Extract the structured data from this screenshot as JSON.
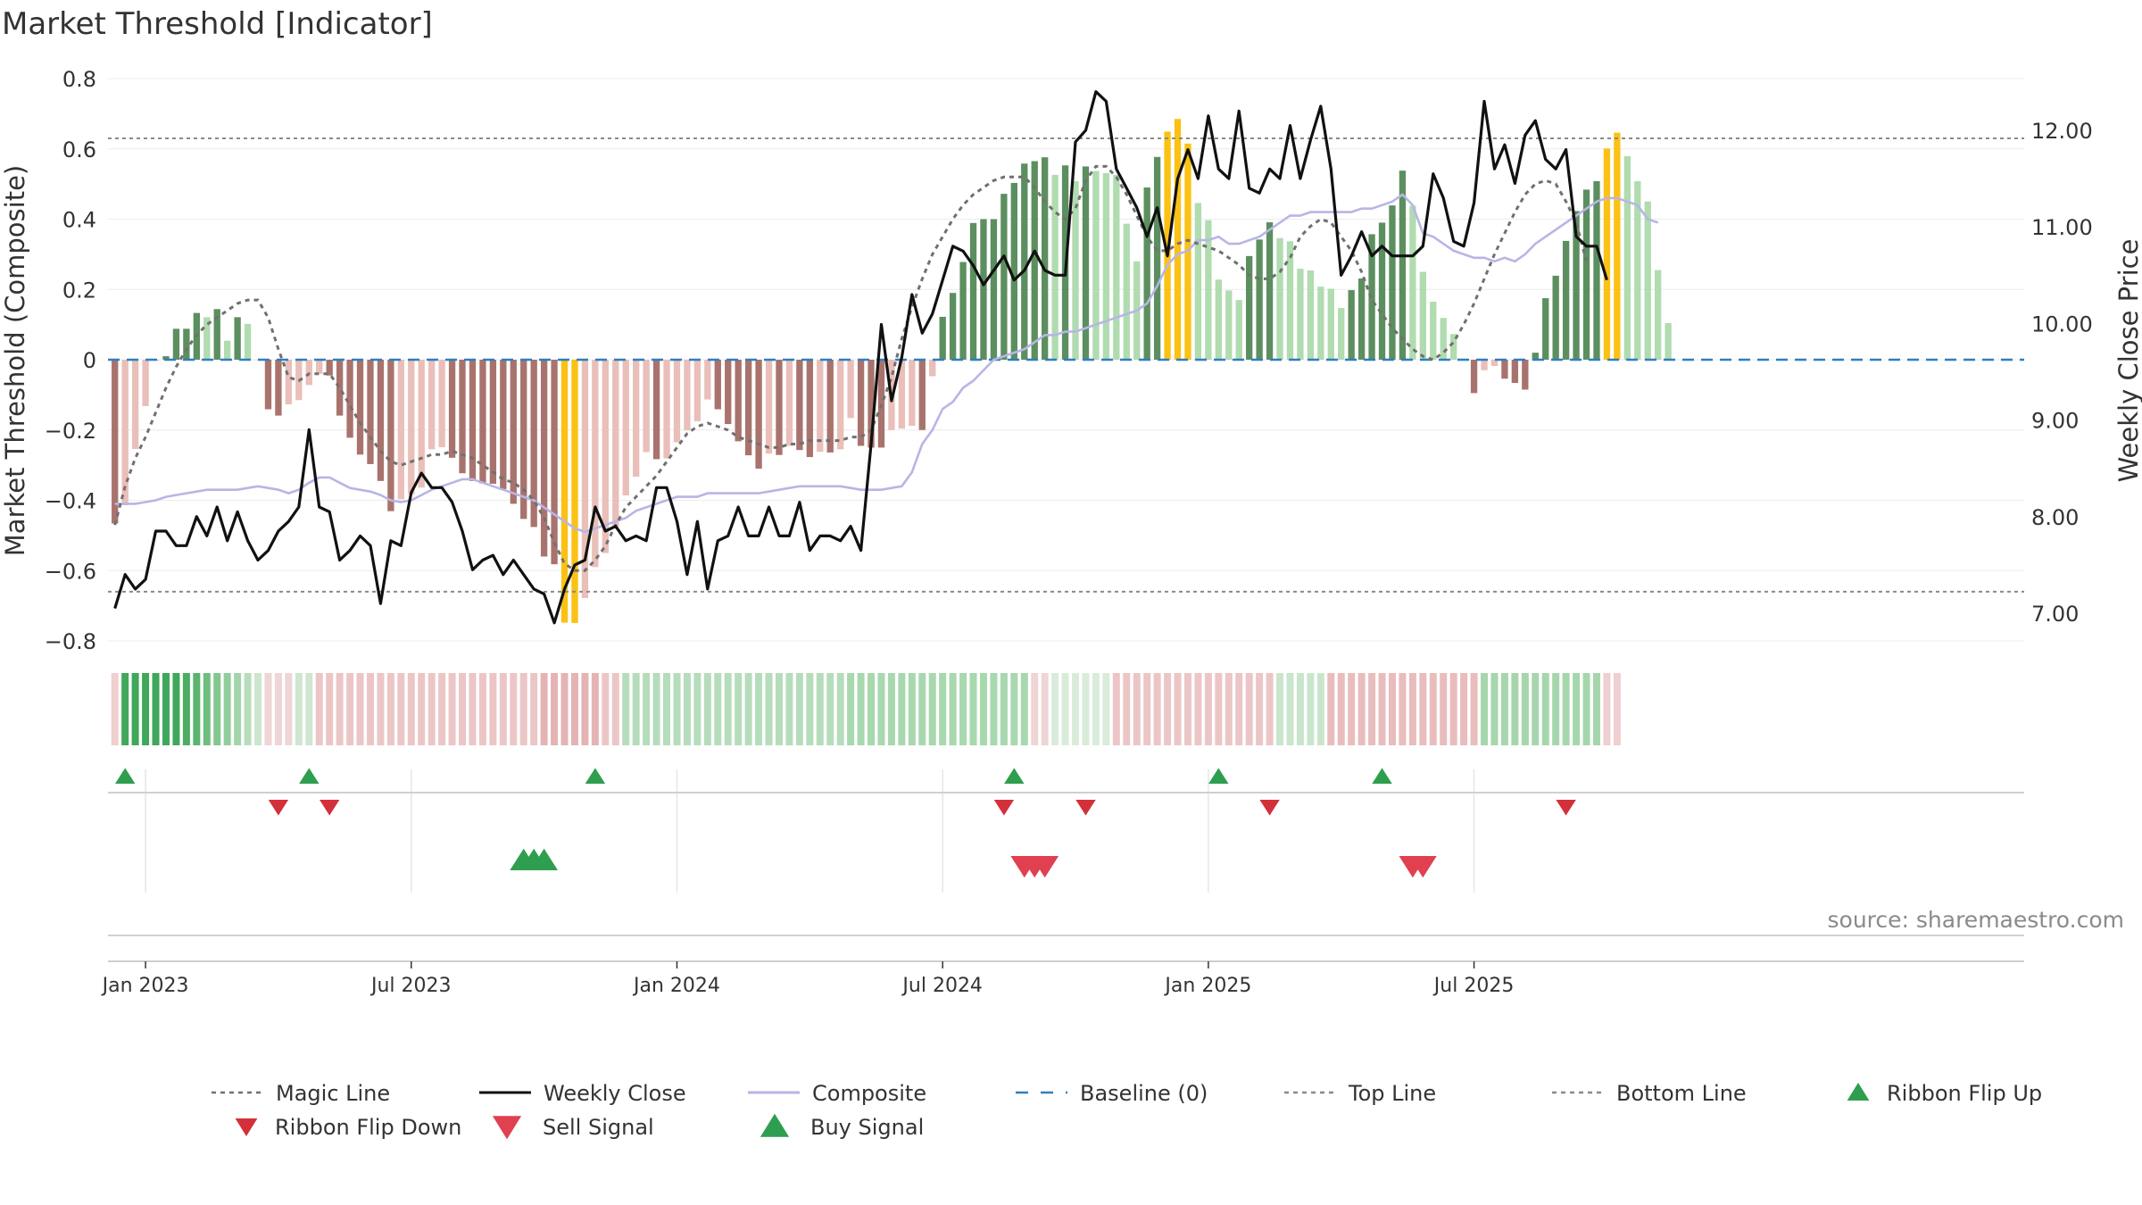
{
  "chart_data": {
    "type": "bar",
    "title": "Market Threshold [Indicator]",
    "ylabel": "Market Threshold (Composite)",
    "y2label": "Weekly Close Price",
    "source": "source: sharemaestro.com",
    "ylim": [
      -0.8,
      0.8
    ],
    "y2lim": [
      6.7,
      12.8
    ],
    "y_ticks": [
      0.8,
      0.6,
      0.4,
      0.2,
      0,
      -0.2,
      -0.4,
      -0.6,
      -0.8
    ],
    "y_tick_labels": [
      "0.8",
      "0.6",
      "0.4",
      "0.2",
      "0",
      "−0.2",
      "−0.4",
      "−0.6",
      "−0.8"
    ],
    "y2_ticks": [
      12,
      11,
      10,
      9,
      8,
      7
    ],
    "y2_tick_labels": [
      "12.00",
      "11.00",
      "10.00",
      "9.00",
      "8.00",
      "7.00"
    ],
    "x_ticks": [
      {
        "label": "Jan 2023",
        "week": 3
      },
      {
        "label": "Jul 2023",
        "week": 29
      },
      {
        "label": "Jan 2024",
        "week": 55
      },
      {
        "label": "Jul 2024",
        "week": 81
      },
      {
        "label": "Jan 2025",
        "week": 107
      },
      {
        "label": "Jul 2025",
        "week": 133
      }
    ],
    "top_line": 0.63,
    "bottom_line": -0.66,
    "composite": [
      -0.466,
      -0.414,
      -0.254,
      -0.132,
      0,
      0.01,
      0.088,
      0.088,
      0.133,
      0.121,
      0.144,
      0.054,
      0.121,
      0.102,
      0,
      -0.141,
      -0.159,
      -0.127,
      -0.115,
      -0.072,
      -0.04,
      -0.045,
      -0.159,
      -0.222,
      -0.27,
      -0.297,
      -0.345,
      -0.431,
      -0.397,
      -0.383,
      -0.364,
      -0.255,
      -0.249,
      -0.279,
      -0.323,
      -0.345,
      -0.352,
      -0.353,
      -0.368,
      -0.41,
      -0.453,
      -0.476,
      -0.56,
      -0.582,
      -0.748,
      -0.749,
      -0.678,
      -0.59,
      -0.55,
      -0.476,
      -0.386,
      -0.333,
      -0.263,
      -0.283,
      -0.281,
      -0.235,
      -0.201,
      -0.175,
      -0.113,
      -0.141,
      -0.183,
      -0.232,
      -0.272,
      -0.31,
      -0.267,
      -0.271,
      -0.245,
      -0.257,
      -0.277,
      -0.262,
      -0.264,
      -0.255,
      -0.166,
      -0.245,
      -0.25,
      -0.25,
      -0.2,
      -0.196,
      -0.188,
      -0.2,
      -0.047,
      0.122,
      0.19,
      0.278,
      0.389,
      0.4,
      0.4,
      0.472,
      0.503,
      0.558,
      0.565,
      0.576,
      0.526,
      0.553,
      0.508,
      0.55,
      0.537,
      0.531,
      0.526,
      0.387,
      0.28,
      0.49,
      0.577,
      0.649,
      0.685,
      0.615,
      0.446,
      0.397,
      0.228,
      0.197,
      0.17,
      0.295,
      0.342,
      0.391,
      0.346,
      0.337,
      0.259,
      0.254,
      0.208,
      0.202,
      0.147,
      0.198,
      0.231,
      0.357,
      0.39,
      0.439,
      0.538,
      0.438,
      0.25,
      0.165,
      0.119,
      0.073,
      0,
      -0.095,
      -0.03,
      -0.018,
      -0.054,
      -0.066,
      -0.085,
      0.02,
      0.175,
      0.239,
      0.338,
      0.423,
      0.484,
      0.508,
      0.601,
      0.646,
      0.579,
      0.508,
      0.45,
      0.255,
      0.104
    ],
    "magic_line": [
      -0.47,
      -0.36,
      -0.28,
      -0.22,
      -0.15,
      -0.08,
      -0.02,
      0.03,
      0.07,
      0.1,
      0.12,
      0.14,
      0.16,
      0.17,
      0.17,
      0.12,
      0.03,
      -0.05,
      -0.06,
      -0.04,
      -0.04,
      -0.04,
      -0.08,
      -0.13,
      -0.18,
      -0.22,
      -0.26,
      -0.29,
      -0.3,
      -0.29,
      -0.28,
      -0.27,
      -0.27,
      -0.26,
      -0.27,
      -0.28,
      -0.3,
      -0.32,
      -0.34,
      -0.35,
      -0.37,
      -0.4,
      -0.45,
      -0.52,
      -0.58,
      -0.6,
      -0.6,
      -0.57,
      -0.53,
      -0.47,
      -0.42,
      -0.39,
      -0.36,
      -0.33,
      -0.29,
      -0.25,
      -0.21,
      -0.19,
      -0.18,
      -0.19,
      -0.2,
      -0.22,
      -0.23,
      -0.24,
      -0.25,
      -0.25,
      -0.24,
      -0.24,
      -0.23,
      -0.23,
      -0.23,
      -0.23,
      -0.22,
      -0.22,
      -0.2,
      -0.13,
      -0.05,
      0.06,
      0.15,
      0.23,
      0.3,
      0.35,
      0.4,
      0.44,
      0.47,
      0.49,
      0.51,
      0.52,
      0.52,
      0.52,
      0.49,
      0.45,
      0.42,
      0.4,
      0.43,
      0.51,
      0.55,
      0.55,
      0.52,
      0.47,
      0.41,
      0.35,
      0.31,
      0.31,
      0.33,
      0.34,
      0.33,
      0.32,
      0.31,
      0.29,
      0.27,
      0.24,
      0.23,
      0.23,
      0.25,
      0.29,
      0.35,
      0.38,
      0.4,
      0.39,
      0.35,
      0.31,
      0.25,
      0.17,
      0.13,
      0.09,
      0.06,
      0.03,
      0.01,
      0,
      0.02,
      0.05,
      0.1,
      0.16,
      0.23,
      0.3,
      0.36,
      0.42,
      0.47,
      0.5,
      0.51,
      0.5,
      0.45,
      0.39,
      0.28
    ],
    "composite_smooth": [
      -0.41,
      -0.41,
      -0.41,
      -0.405,
      -0.4,
      -0.39,
      -0.385,
      -0.38,
      -0.375,
      -0.37,
      -0.37,
      -0.37,
      -0.37,
      -0.365,
      -0.36,
      -0.365,
      -0.37,
      -0.38,
      -0.37,
      -0.35,
      -0.335,
      -0.335,
      -0.35,
      -0.365,
      -0.37,
      -0.375,
      -0.385,
      -0.4,
      -0.405,
      -0.4,
      -0.385,
      -0.37,
      -0.36,
      -0.35,
      -0.34,
      -0.34,
      -0.35,
      -0.36,
      -0.37,
      -0.38,
      -0.39,
      -0.4,
      -0.42,
      -0.44,
      -0.46,
      -0.48,
      -0.49,
      -0.48,
      -0.47,
      -0.46,
      -0.45,
      -0.43,
      -0.42,
      -0.41,
      -0.4,
      -0.39,
      -0.39,
      -0.39,
      -0.38,
      -0.38,
      -0.38,
      -0.38,
      -0.38,
      -0.38,
      -0.375,
      -0.37,
      -0.365,
      -0.36,
      -0.36,
      -0.36,
      -0.36,
      -0.36,
      -0.365,
      -0.37,
      -0.37,
      -0.37,
      -0.365,
      -0.36,
      -0.32,
      -0.24,
      -0.2,
      -0.14,
      -0.12,
      -0.08,
      -0.06,
      -0.03,
      0,
      0.01,
      0.02,
      0.03,
      0.05,
      0.07,
      0.07,
      0.08,
      0.08,
      0.09,
      0.1,
      0.11,
      0.12,
      0.13,
      0.14,
      0.16,
      0.21,
      0.27,
      0.3,
      0.31,
      0.34,
      0.34,
      0.35,
      0.33,
      0.33,
      0.34,
      0.35,
      0.37,
      0.39,
      0.41,
      0.41,
      0.42,
      0.42,
      0.42,
      0.42,
      0.42,
      0.43,
      0.43,
      0.44,
      0.45,
      0.47,
      0.44,
      0.36,
      0.35,
      0.33,
      0.31,
      0.3,
      0.29,
      0.29,
      0.28,
      0.29,
      0.28,
      0.3,
      0.33,
      0.35,
      0.37,
      0.39,
      0.41,
      0.43,
      0.45,
      0.46,
      0.46,
      0.45,
      0.44,
      0.4,
      0.39
    ],
    "weekly_close": [
      7.05,
      7.4,
      7.25,
      7.35,
      7.85,
      7.85,
      7.7,
      7.7,
      8.0,
      7.8,
      8.1,
      7.75,
      8.05,
      7.75,
      7.55,
      7.65,
      7.85,
      7.95,
      8.1,
      8.9,
      8.1,
      8.05,
      7.55,
      7.65,
      7.8,
      7.7,
      7.1,
      7.75,
      7.7,
      8.25,
      8.45,
      8.3,
      8.3,
      8.15,
      7.85,
      7.45,
      7.55,
      7.6,
      7.4,
      7.55,
      7.4,
      7.25,
      7.2,
      6.9,
      7.25,
      7.5,
      7.55,
      8.1,
      7.85,
      7.9,
      7.75,
      7.8,
      7.75,
      8.3,
      8.3,
      7.95,
      7.4,
      7.95,
      7.25,
      7.75,
      7.8,
      8.1,
      7.8,
      7.8,
      8.1,
      7.8,
      7.8,
      8.15,
      7.65,
      7.8,
      7.8,
      7.75,
      7.9,
      7.65,
      8.75,
      9.99,
      9.2,
      9.65,
      10.3,
      9.9,
      10.1,
      10.45,
      10.8,
      10.75,
      10.6,
      10.4,
      10.55,
      10.7,
      10.45,
      10.55,
      10.75,
      10.55,
      10.5,
      10.5,
      11.88,
      12.0,
      12.4,
      12.3,
      11.6,
      11.4,
      11.2,
      10.9,
      11.2,
      10.7,
      11.5,
      11.8,
      11.5,
      12.15,
      11.6,
      11.5,
      12.2,
      11.4,
      11.35,
      11.6,
      11.5,
      12.05,
      11.5,
      11.9,
      12.25,
      11.6,
      10.5,
      10.7,
      10.95,
      10.7,
      10.8,
      10.7,
      10.7,
      10.7,
      10.8,
      11.55,
      11.3,
      10.85,
      10.8,
      11.25,
      12.3,
      11.6,
      11.85,
      11.45,
      11.95,
      12.1,
      11.7,
      11.6,
      11.8,
      10.9,
      10.8,
      10.8,
      10.45
    ],
    "ribbon_colors": [
      "#efcfcf",
      "#3fa85a",
      "#3fa85a",
      "#3fa85a",
      "#3fa85a",
      "#3fa85a",
      "#3fa85a",
      "#4cad63",
      "#5ab46e",
      "#6fbd7e",
      "#83c78f",
      "#92cd9c",
      "#a3d5aa",
      "#b7ddbb",
      "#cce6ce",
      "#efd5d5",
      "#efd5d5",
      "#efd5d5",
      "#cfe6d1",
      "#cfe6d1",
      "#ecc6c6",
      "#ecc6c6",
      "#ecc6c6",
      "#ecc6c6",
      "#ecc6c6",
      "#ecc6c6",
      "#ecc6c6",
      "#ecc6c6",
      "#ecc6c6",
      "#ecc6c6",
      "#ecc6c6",
      "#ecc6c6",
      "#ecc6c6",
      "#ecc6c6",
      "#ecc6c6",
      "#ecc6c6",
      "#ecc6c6",
      "#ecc6c6",
      "#ecc6c6",
      "#ecc6c6",
      "#ecc6c6",
      "#ecc6c6",
      "#e4b4b4",
      "#e4b4b4",
      "#e4b4b4",
      "#e4b4b4",
      "#e4b4b4",
      "#e4b4b4",
      "#ecc6c6",
      "#ecc6c6",
      "#b6ddbb",
      "#b6ddbb",
      "#b6ddbb",
      "#b6ddbb",
      "#b6ddbb",
      "#b6ddbb",
      "#b6ddbb",
      "#b6ddbb",
      "#b6ddbb",
      "#b6ddbb",
      "#b6ddbb",
      "#b6ddbb",
      "#b6ddbb",
      "#b6ddbb",
      "#b6ddbb",
      "#b6ddbb",
      "#b6ddbb",
      "#b6ddbb",
      "#b6ddbb",
      "#b6ddbb",
      "#b6ddbb",
      "#b6ddbb",
      "#a8d8ae",
      "#a8d8ae",
      "#a8d8ae",
      "#a8d8ae",
      "#a8d8ae",
      "#a8d8ae",
      "#a8d8ae",
      "#a8d8ae",
      "#a8d8ae",
      "#a8d8ae",
      "#a8d8ae",
      "#a8d8ae",
      "#a8d8ae",
      "#a8d8ae",
      "#a8d8ae",
      "#a8d8ae",
      "#a8d8ae",
      "#a8d8ae",
      "#efd5d5",
      "#efd5d5",
      "#d9ecda",
      "#d9ecda",
      "#d9ecda",
      "#d9ecda",
      "#d9ecda",
      "#d9ecda",
      "#ecc6c6",
      "#ecc6c6",
      "#ecc6c6",
      "#ecc6c6",
      "#ecc6c6",
      "#ecc6c6",
      "#ecc6c6",
      "#ecc6c6",
      "#ecc6c6",
      "#ecc6c6",
      "#ecc6c6",
      "#ecc6c6",
      "#ecc6c6",
      "#ecc6c6",
      "#ecc6c6",
      "#ecc6c6",
      "#c9e6cc",
      "#c9e6cc",
      "#c9e6cc",
      "#c9e6cc",
      "#c9e6cc",
      "#e9bdbd",
      "#e9bdbd",
      "#e9bdbd",
      "#e9bdbd",
      "#e9bdbd",
      "#e9bdbd",
      "#e9bdbd",
      "#e9bdbd",
      "#e9bdbd",
      "#e9bdbd",
      "#e9bdbd",
      "#e9bdbd",
      "#e9bdbd",
      "#e9bdbd",
      "#e9bdbd",
      "#a6d6ac",
      "#a6d6ac",
      "#a6d6ac",
      "#a6d6ac",
      "#a6d6ac",
      "#a6d6ac",
      "#a6d6ac",
      "#a6d6ac",
      "#a6d6ac",
      "#a6d6ac",
      "#a6d6ac",
      "#a6d6ac",
      "#efcfcf",
      "#efcfcf"
    ],
    "ribbon_flip_up": [
      1,
      19,
      47,
      88,
      108,
      124
    ],
    "ribbon_flip_down": [
      16,
      21,
      87,
      95,
      113,
      142
    ],
    "buy_signals": [
      40,
      41,
      42
    ],
    "sell_signals": [
      89,
      90,
      91,
      127,
      128
    ],
    "colors": {
      "pos_dark": "#5c8f5f",
      "pos_light": "#b0dcb0",
      "neg_dark": "#a9736d",
      "neg_light": "#eabfb9",
      "extreme": "#fbc114",
      "magic_line": "#707070",
      "weekly_close": "#111111",
      "composite_smooth": "#b8b5e6",
      "baseline": "#2f7fbf",
      "top_bottom": "#8a8a8a",
      "flip_up": "#2f9e4f",
      "flip_down": "#d3303a",
      "buy": "#2f9e4f",
      "sell": "#e04050"
    },
    "legend": [
      {
        "label": "Magic Line",
        "kind": "dotted",
        "color": "#707070"
      },
      {
        "label": "Weekly Close",
        "kind": "solid",
        "color": "#111111"
      },
      {
        "label": "Composite",
        "kind": "solid",
        "color": "#b8b5e6"
      },
      {
        "label": "Baseline (0)",
        "kind": "dashed",
        "color": "#2f7fbf"
      },
      {
        "label": "Top Line",
        "kind": "dotted",
        "color": "#8a8a8a"
      },
      {
        "label": "Bottom Line",
        "kind": "dotted",
        "color": "#8a8a8a"
      },
      {
        "label": "Ribbon Flip Up",
        "kind": "tri-up",
        "color": "#2f9e4f"
      },
      {
        "label": "Ribbon Flip Down",
        "kind": "tri-down",
        "color": "#d3303a"
      },
      {
        "label": "Sell Signal",
        "kind": "tri-down-big",
        "color": "#e04050"
      },
      {
        "label": "Buy Signal",
        "kind": "tri-up-big",
        "color": "#2f9e4f"
      }
    ]
  }
}
